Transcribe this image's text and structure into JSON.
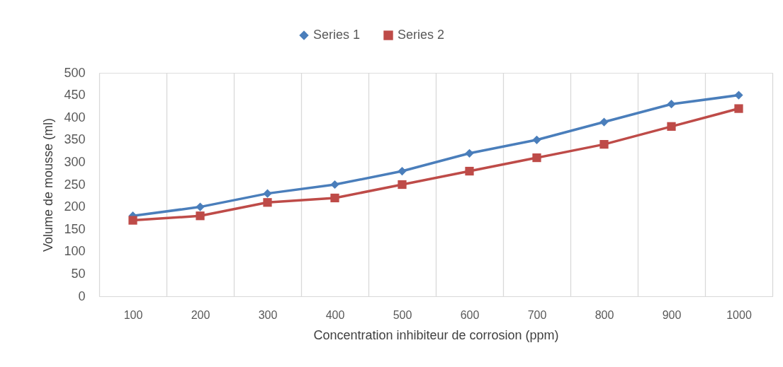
{
  "chart_data": {
    "type": "line",
    "xlabel": "Concentration inhibiteur de corrosion (ppm)",
    "ylabel": "Volume de mousse (ml)",
    "categories": [
      "100",
      "200",
      "300",
      "400",
      "500",
      "600",
      "700",
      "800",
      "900",
      "1000"
    ],
    "series": [
      {
        "name": "Series 1",
        "color": "#4a7ebb",
        "marker": "diamond",
        "values": [
          180,
          200,
          230,
          250,
          280,
          320,
          350,
          390,
          430,
          450
        ]
      },
      {
        "name": "Series 2",
        "color": "#be4b48",
        "marker": "square",
        "values": [
          170,
          180,
          210,
          220,
          250,
          280,
          310,
          340,
          380,
          420
        ]
      }
    ],
    "ylim": [
      0,
      500
    ],
    "yticks": [
      0,
      50,
      100,
      150,
      200,
      250,
      300,
      350,
      400,
      450,
      500
    ],
    "grid": "x",
    "legend": "top",
    "line_style": "solid"
  }
}
